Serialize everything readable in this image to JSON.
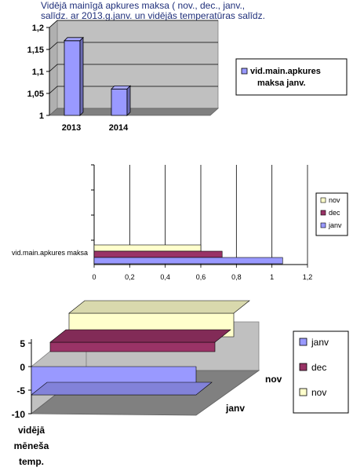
{
  "title_line1": "Vidējā mainīgā apkures maksa ( nov., dec., janv.,",
  "title_line2": "salīdz. ar 2013.g.janv. un vidējās temperatūras salīdz.",
  "chart_data": [
    {
      "type": "bar",
      "categories": [
        "2013",
        "2014"
      ],
      "series": [
        {
          "name": "vid.main.apkures maksa janv.",
          "values": [
            1.17,
            1.06
          ]
        }
      ],
      "ylim": [
        1,
        1.2
      ],
      "yticks": [
        "1",
        "1,05",
        "1,1",
        "1,15",
        "1,2"
      ],
      "grid": true,
      "legend": "right",
      "colors": {
        "bar": "#9999ff",
        "wall": "#c0c0c0",
        "floor": "#808080"
      }
    },
    {
      "type": "bar",
      "orientation": "horizontal",
      "categories": [
        "vid.main.apkures maksa"
      ],
      "series": [
        {
          "name": "janv",
          "value": 1.06,
          "color": "#9999ff"
        },
        {
          "name": "dec",
          "value": 0.72,
          "color": "#993366"
        },
        {
          "name": "nov",
          "value": 0.6,
          "color": "#ffffcc"
        }
      ],
      "xlim": [
        0,
        1.2
      ],
      "xticks": [
        "0",
        "0,2",
        "0,4",
        "0,6",
        "0,8",
        "1",
        "1,2"
      ],
      "grid": true,
      "legend": "right"
    },
    {
      "type": "area",
      "categories": [
        "vidējā mēneša temp."
      ],
      "series": [
        {
          "name": "janv",
          "value": -6,
          "color": "#9999ff"
        },
        {
          "name": "dec",
          "value": 2,
          "color": "#993366"
        },
        {
          "name": "nov",
          "value": 5,
          "color": "#ffffcc"
        }
      ],
      "depth_labels": [
        "nov",
        "janv"
      ],
      "category_label_lines": [
        "vidējā",
        "mēneša",
        "temp."
      ],
      "ylim": [
        -10,
        5
      ],
      "yticks": [
        "-10",
        "-5",
        "0",
        "5"
      ],
      "grid": true,
      "legend": "right"
    }
  ]
}
